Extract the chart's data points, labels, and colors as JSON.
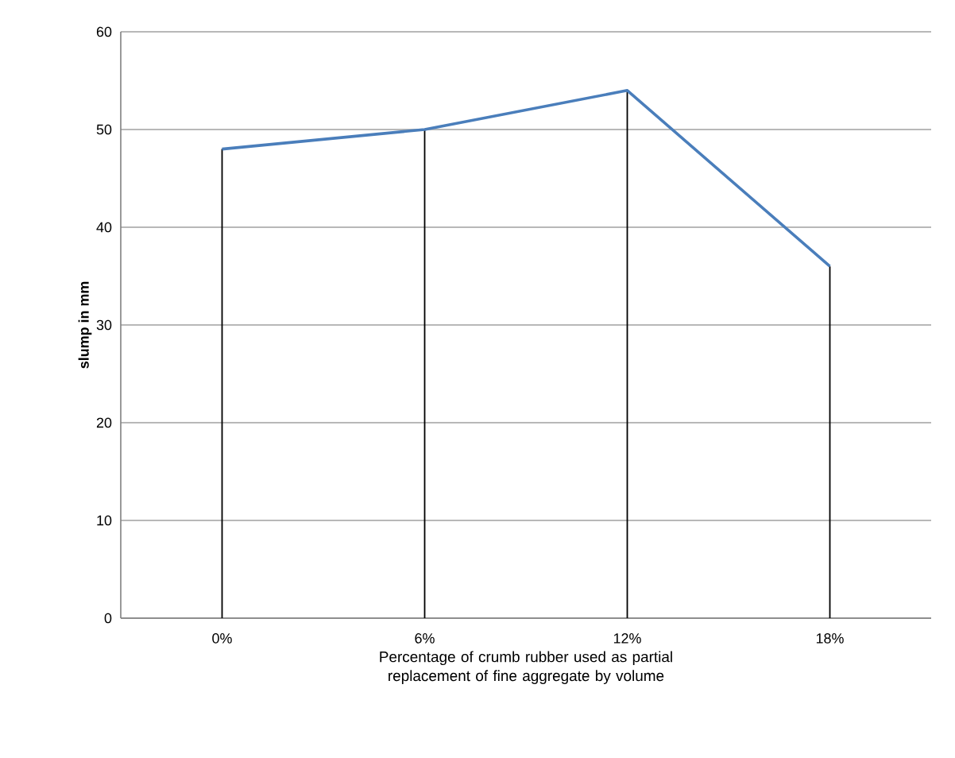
{
  "chart_data": {
    "type": "line",
    "xlabel": "Percentage of crumb rubber used as partial replacement of fine aggregate by volume",
    "ylabel": "slump in mm",
    "categories": [
      "0%",
      "6%",
      "12%",
      "18%"
    ],
    "series": [
      {
        "type": "bar",
        "color": "#000000",
        "values": [
          48,
          50,
          54,
          36
        ]
      },
      {
        "color": "#4a7ebb",
        "marker": "none",
        "line_style": "solid",
        "values": [
          48,
          50,
          54,
          36
        ]
      }
    ],
    "ylim": [
      0,
      60
    ],
    "yticks": [
      0,
      10,
      20,
      30,
      40,
      50,
      60
    ],
    "grid": "y"
  }
}
